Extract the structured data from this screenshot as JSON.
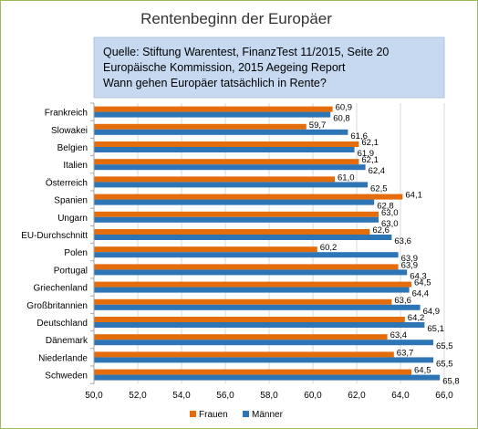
{
  "chart_data": {
    "type": "bar",
    "orientation": "horizontal",
    "title": "Rentenbeginn der Europäer",
    "annotation_lines": [
      "Quelle: Stiftung Warentest, FinanzTest 11/2015, Seite 20",
      "Europäische Kommission, 2015 Aegeing Report",
      "Wann gehen Europäer tatsächlich in Rente?"
    ],
    "categories": [
      "Frankreich",
      "Slowakei",
      "Belgien",
      "Italien",
      "Österreich",
      "Spanien",
      "Ungarn",
      "EU-Durchschnitt",
      "Polen",
      "Portugal",
      "Griechenland",
      "Großbritannien",
      "Deutschland",
      "Dänemark",
      "Niederlande",
      "Schweden"
    ],
    "series": [
      {
        "name": "Frauen",
        "color": "#e46c0a",
        "values": [
          60.9,
          59.7,
          62.1,
          62.1,
          61.0,
          64.1,
          63.0,
          62.6,
          60.2,
          63.9,
          64.5,
          63.6,
          64.2,
          63.4,
          63.7,
          64.5
        ],
        "labels": [
          "60,9",
          "59,7",
          "62,1",
          "62,1",
          "61,0",
          "64,1",
          "63,0",
          "62,6",
          "60,2",
          "63,9",
          "64,5",
          "63,6",
          "64,2",
          "63,4",
          "63,7",
          "64,5"
        ]
      },
      {
        "name": "Männer",
        "color": "#2e75b6",
        "values": [
          60.8,
          61.6,
          61.9,
          62.4,
          62.5,
          62.8,
          63.0,
          63.6,
          63.9,
          64.3,
          64.4,
          64.9,
          65.1,
          65.5,
          65.5,
          65.8
        ],
        "labels": [
          "60,8",
          "61,6",
          "61,9",
          "62,4",
          "62,5",
          "62,8",
          "63,0",
          "63,6",
          "63,9",
          "64,3",
          "64,4",
          "64,9",
          "65,1",
          "65,5",
          "65,5",
          "65,8"
        ]
      }
    ],
    "xlim": [
      50,
      66
    ],
    "x_ticks": [
      50,
      52,
      54,
      56,
      58,
      60,
      62,
      64,
      66
    ],
    "x_tick_labels": [
      "50,0",
      "52,0",
      "54,0",
      "56,0",
      "58,0",
      "60,0",
      "62,0",
      "64,0",
      "66,0"
    ],
    "grid": true,
    "legend": "bottom"
  }
}
